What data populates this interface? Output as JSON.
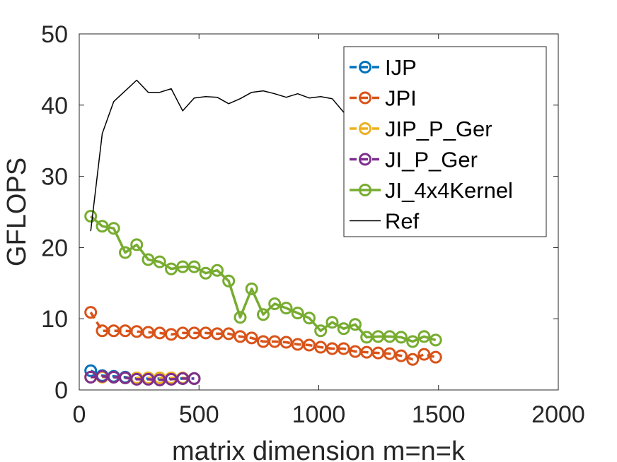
{
  "chart_data": {
    "type": "line",
    "title": "",
    "xlabel": "matrix dimension m=n=k",
    "ylabel": "GFLOPS",
    "xlim": [
      0,
      2000
    ],
    "ylim": [
      0,
      50
    ],
    "xticks": [
      0,
      500,
      1000,
      1500,
      2000
    ],
    "yticks": [
      0,
      10,
      20,
      30,
      40,
      50
    ],
    "xtick_labels": [
      "0",
      "500",
      "1000",
      "1500",
      "2000"
    ],
    "ytick_labels": [
      "0",
      "10",
      "20",
      "30",
      "40",
      "50"
    ],
    "grid": false,
    "legend_position": "top-right",
    "series": [
      {
        "name": "IJP",
        "color": "#0072BD",
        "style": "dashed-circle",
        "x": [
          48,
          96,
          144,
          192,
          240,
          288,
          336,
          384,
          432,
          480
        ],
        "y": [
          2.7,
          2.0,
          1.9,
          1.8,
          1.6,
          1.6,
          1.6,
          1.6,
          1.6,
          1.6
        ]
      },
      {
        "name": "JPI",
        "color": "#D95319",
        "style": "dashed-circle",
        "x": [
          48,
          96,
          144,
          192,
          240,
          288,
          336,
          384,
          432,
          480,
          528,
          576,
          624,
          672,
          720,
          768,
          816,
          864,
          912,
          960,
          1008,
          1056,
          1104,
          1152,
          1200,
          1248,
          1296,
          1344,
          1392,
          1440,
          1488
        ],
        "y": [
          10.9,
          8.3,
          8.3,
          8.3,
          8.2,
          8.1,
          8.0,
          7.8,
          8.0,
          8.0,
          8.0,
          7.9,
          7.9,
          7.5,
          7.3,
          6.8,
          6.8,
          6.7,
          6.4,
          6.3,
          6.0,
          5.8,
          5.8,
          5.4,
          5.3,
          5.2,
          5.1,
          4.8,
          4.3,
          5.0,
          4.6
        ]
      },
      {
        "name": "JIP_P_Ger",
        "color": "#EDB120",
        "style": "dashed-circle",
        "x": [
          48,
          96,
          144,
          192,
          240,
          288,
          336,
          384,
          432,
          480
        ],
        "y": [
          1.8,
          1.8,
          1.8,
          1.7,
          1.7,
          1.7,
          1.7,
          1.7,
          1.7,
          1.6
        ]
      },
      {
        "name": "JI_P_Ger",
        "color": "#7E2F8E",
        "style": "dashed-circle",
        "x": [
          48,
          96,
          144,
          192,
          240,
          288,
          336,
          384,
          432,
          480
        ],
        "y": [
          1.8,
          1.9,
          1.8,
          1.7,
          1.5,
          1.5,
          1.4,
          1.5,
          1.6,
          1.6
        ]
      },
      {
        "name": "JI_4x4Kernel",
        "color": "#77AC30",
        "style": "solid-circle",
        "x": [
          48,
          96,
          144,
          192,
          240,
          288,
          336,
          384,
          432,
          480,
          528,
          576,
          624,
          672,
          720,
          768,
          816,
          864,
          912,
          960,
          1008,
          1056,
          1104,
          1152,
          1200,
          1248,
          1296,
          1344,
          1392,
          1440,
          1488
        ],
        "y": [
          24.4,
          23.0,
          22.7,
          19.3,
          20.4,
          18.3,
          18.0,
          17.0,
          17.3,
          17.3,
          16.4,
          16.8,
          15.3,
          10.2,
          14.2,
          10.6,
          12.1,
          11.5,
          10.8,
          10.1,
          8.3,
          9.5,
          8.6,
          9.2,
          7.4,
          7.5,
          7.5,
          7.4,
          6.8,
          7.5,
          7.0
        ]
      },
      {
        "name": "Ref",
        "color": "#000000",
        "style": "solid",
        "x": [
          48,
          96,
          144,
          192,
          240,
          288,
          336,
          384,
          432,
          480,
          528,
          576,
          624,
          672,
          720,
          768,
          816,
          864,
          912,
          960,
          1008,
          1056,
          1104,
          1152,
          1200,
          1248,
          1296,
          1344,
          1392,
          1440,
          1488
        ],
        "y": [
          22.3,
          36.0,
          40.5,
          42.0,
          43.5,
          41.8,
          41.8,
          42.3,
          39.2,
          41.0,
          41.2,
          41.1,
          40.2,
          40.9,
          41.8,
          42.0,
          41.6,
          41.1,
          41.6,
          41.0,
          41.2,
          40.9,
          39.0,
          38.5,
          38.0,
          37.8,
          37.5,
          37.6,
          37.2,
          37.6,
          37.4
        ]
      }
    ]
  }
}
